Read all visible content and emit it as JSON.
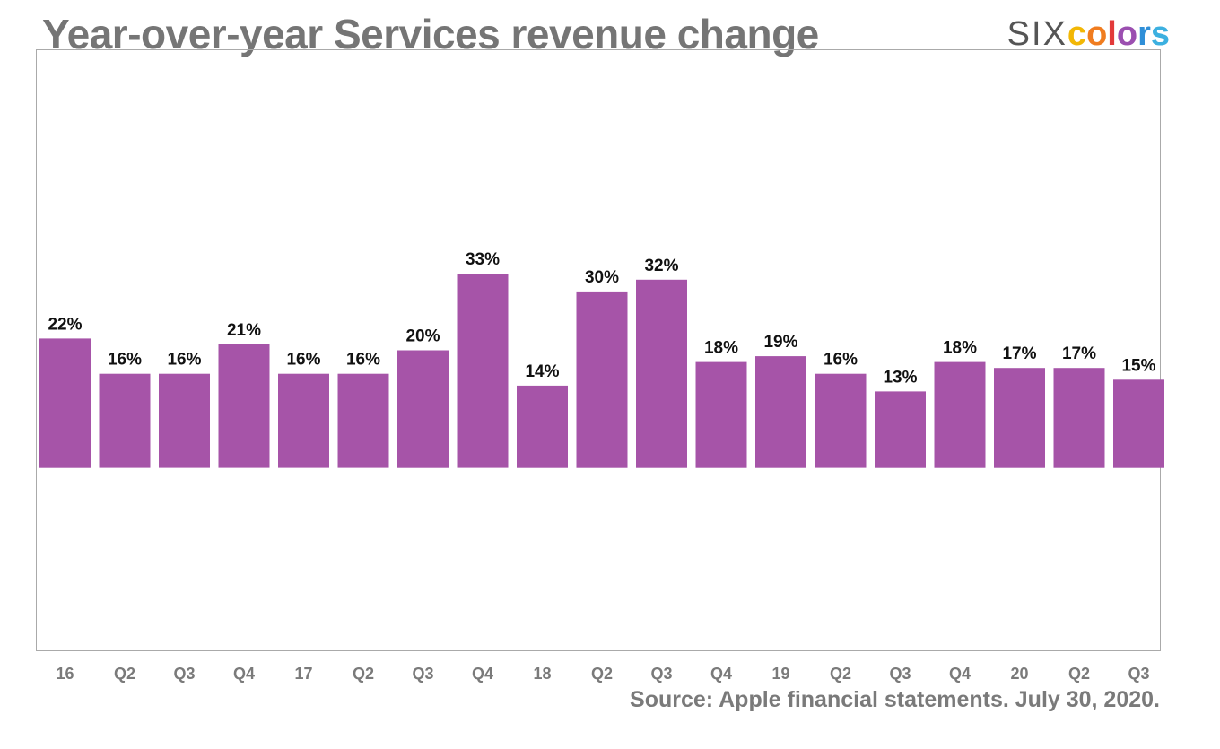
{
  "header": {
    "title": "Year-over-year Services revenue change"
  },
  "logo": {
    "six": "SIX",
    "colors_letters": [
      {
        "ch": "c",
        "color": "#f2b705"
      },
      {
        "ch": "o",
        "color": "#f07c1f"
      },
      {
        "ch": "l",
        "color": "#e23a3a"
      },
      {
        "ch": "o",
        "color": "#9b4fb0"
      },
      {
        "ch": "r",
        "color": "#2f8fd8"
      },
      {
        "ch": "s",
        "color": "#3cb0e0"
      }
    ]
  },
  "footer": {
    "source": "Source: Apple financial statements. July 30, 2020."
  },
  "chart_data": {
    "type": "bar",
    "title": "Year-over-year Services revenue change",
    "categories": [
      "16",
      "Q2",
      "Q3",
      "Q4",
      "17",
      "Q2",
      "Q3",
      "Q4",
      "18",
      "Q2",
      "Q3",
      "Q4",
      "19",
      "Q2",
      "Q3",
      "Q4",
      "20",
      "Q2",
      "Q3"
    ],
    "values": [
      22,
      16,
      16,
      21,
      16,
      16,
      20,
      33,
      14,
      30,
      32,
      18,
      19,
      16,
      13,
      18,
      17,
      17,
      15
    ],
    "data_labels": [
      "22%",
      "16%",
      "16%",
      "21%",
      "16%",
      "16%",
      "20%",
      "33%",
      "14%",
      "30%",
      "32%",
      "18%",
      "19%",
      "16%",
      "13%",
      "18%",
      "17%",
      "17%",
      "15%"
    ],
    "ylim": [
      -31,
      71
    ],
    "grid": false,
    "bar_color": "#a654a8"
  }
}
